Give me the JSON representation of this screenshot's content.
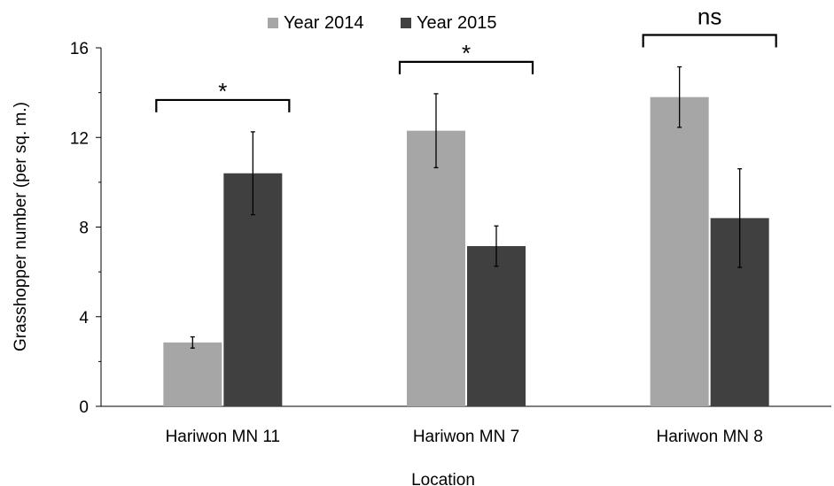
{
  "chart_data": {
    "type": "bar",
    "categories": [
      "Hariwon MN 11",
      "Hariwon MN 7",
      "Hariwon MN 8"
    ],
    "series": [
      {
        "name": "Year 2014",
        "values": [
          2.85,
          12.3,
          13.8
        ],
        "errors": [
          0.25,
          1.65,
          1.35
        ],
        "color": "#a6a6a6"
      },
      {
        "name": "Year 2015",
        "values": [
          10.4,
          7.15,
          8.4
        ],
        "errors": [
          1.85,
          0.9,
          2.2
        ],
        "color": "#404040"
      }
    ],
    "significance": [
      "*",
      "*",
      "ns"
    ],
    "xlabel": "Location",
    "ylabel": "Grasshopper number (per sq. m.)",
    "ylim": [
      0,
      16
    ],
    "yticks": [
      "0",
      "4",
      "8",
      "12",
      "16"
    ],
    "legend_position": "top",
    "grid": false
  }
}
